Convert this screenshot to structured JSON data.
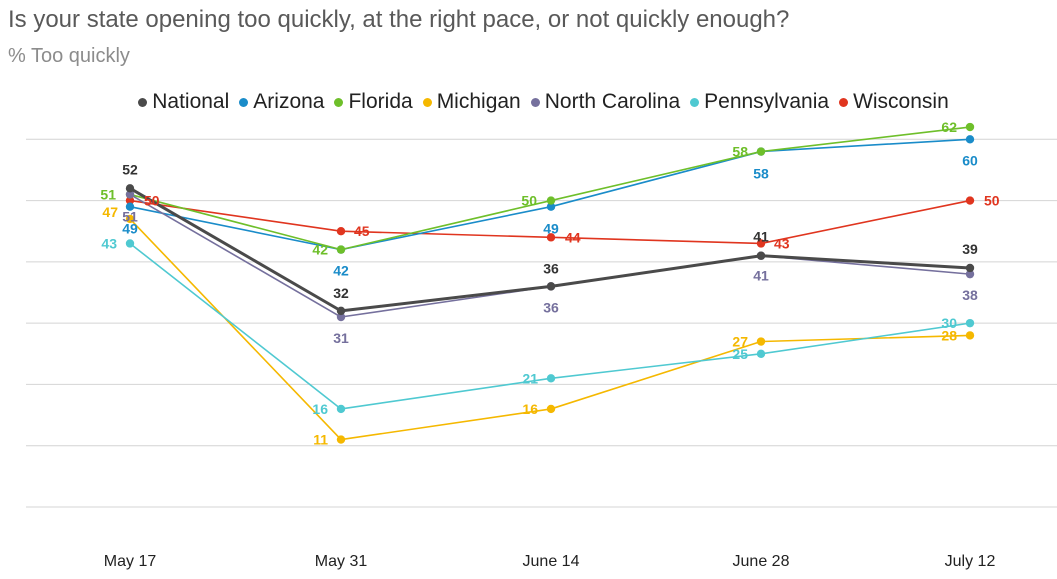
{
  "title": "Is your state opening too quickly, at the right pace, or not quickly enough?",
  "subtitle": "% Too quickly",
  "colors": {
    "National": "#4a4a4a",
    "Arizona": "#1a8cc9",
    "Florida": "#6ebf2a",
    "Michigan": "#f5b800",
    "North Carolina": "#75709d",
    "Pennsylvania": "#4fc9d1",
    "Wisconsin": "#e0351f",
    "grid": "#d4d4d4"
  },
  "chart_data": {
    "type": "line",
    "categories": [
      "May 17",
      "May 31",
      "June 14",
      "June 28",
      "July 12"
    ],
    "ylim": [
      0,
      70
    ],
    "grid": true,
    "legend": "top-center",
    "series": [
      {
        "name": "National",
        "values": [
          52,
          32,
          36,
          41,
          39
        ],
        "labels": [
          "52",
          "32",
          "36",
          "41",
          "39"
        ]
      },
      {
        "name": "Arizona",
        "values": [
          49,
          42,
          49,
          58,
          60
        ],
        "labels": [
          "49",
          "42",
          "49",
          "58",
          "60"
        ]
      },
      {
        "name": "Florida",
        "values": [
          51,
          42,
          50,
          58,
          62
        ],
        "labels": [
          "51",
          "42",
          "50",
          "58",
          "62"
        ]
      },
      {
        "name": "Michigan",
        "values": [
          47,
          11,
          16,
          27,
          28
        ],
        "labels": [
          "47",
          "11",
          "16",
          "27",
          "28"
        ]
      },
      {
        "name": "North Carolina",
        "values": [
          51,
          31,
          36,
          41,
          38
        ],
        "labels": [
          "51",
          "31",
          "36",
          "41",
          "38"
        ]
      },
      {
        "name": "Pennsylvania",
        "values": [
          43,
          16,
          21,
          25,
          30
        ],
        "labels": [
          "43",
          "16",
          "21",
          "25",
          "30"
        ]
      },
      {
        "name": "Wisconsin",
        "values": [
          50,
          45,
          44,
          43,
          50
        ],
        "labels": [
          "50",
          "45",
          "44",
          "43",
          "50"
        ]
      }
    ]
  }
}
